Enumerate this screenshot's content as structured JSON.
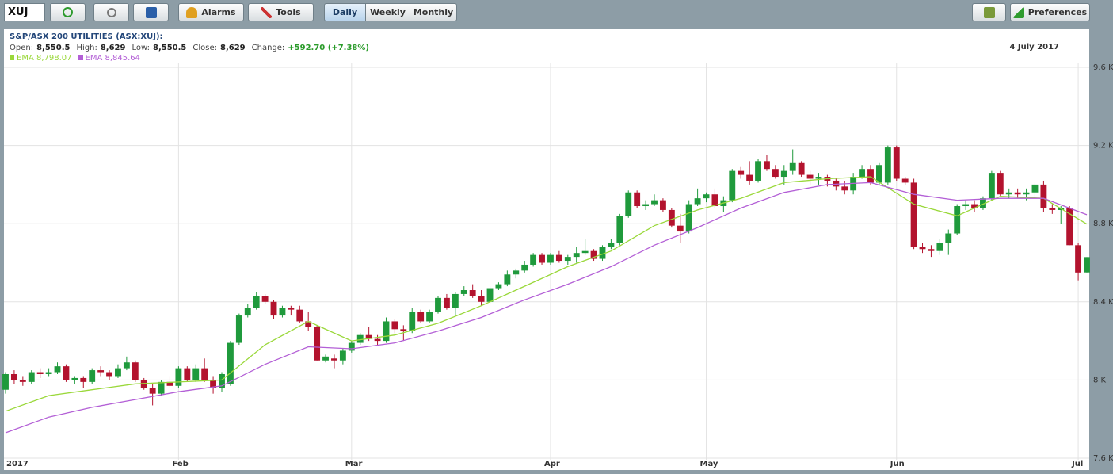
{
  "toolbar": {
    "symbol": "XUJ",
    "buttons": [
      "Alarms",
      "Tools",
      "Daily",
      "Weekly",
      "Monthly",
      "Preferences"
    ]
  },
  "chart_data": {
    "type": "candlestick",
    "title": "S&P/ASX 200 UTILITIES (ASX:XUJ):",
    "info": {
      "labels": [
        "Open:",
        "High:",
        "Low:",
        "Close:",
        "Change:"
      ],
      "values": [
        "8,550.5",
        "8,629",
        "8,550.5",
        "8,629",
        "+592.70 (+7.38%)"
      ]
    },
    "date": "4 July 2017",
    "up_color": "#1f9a3c",
    "down_color": "#b3132e",
    "ohlc": [
      [
        7950,
        8040,
        7930,
        8030
      ],
      [
        8030,
        8050,
        7980,
        8000
      ],
      [
        8000,
        8020,
        7970,
        7990
      ],
      [
        7990,
        8050,
        7980,
        8040
      ],
      [
        8040,
        8060,
        8010,
        8030
      ],
      [
        8030,
        8060,
        8020,
        8040
      ],
      [
        8040,
        8090,
        8030,
        8070
      ],
      [
        8070,
        8080,
        7990,
        8000
      ],
      [
        8000,
        8020,
        7980,
        8010
      ],
      [
        8010,
        8020,
        7960,
        7990
      ],
      [
        7990,
        8060,
        7980,
        8050
      ],
      [
        8050,
        8070,
        8020,
        8040
      ],
      [
        8040,
        8050,
        8000,
        8020
      ],
      [
        8020,
        8080,
        8010,
        8060
      ],
      [
        8060,
        8120,
        8050,
        8090
      ],
      [
        8090,
        8100,
        7990,
        8000
      ],
      [
        8000,
        8010,
        7950,
        7960
      ],
      [
        7960,
        7980,
        7870,
        7930
      ],
      [
        7930,
        8000,
        7920,
        7990
      ],
      [
        7990,
        8020,
        7960,
        7970
      ],
      [
        7970,
        8070,
        7960,
        8060
      ],
      [
        8060,
        8070,
        7990,
        8000
      ],
      [
        8000,
        8080,
        7990,
        8060
      ],
      [
        8060,
        8110,
        7990,
        8000
      ],
      [
        8000,
        8020,
        7930,
        7960
      ],
      [
        7960,
        8040,
        7940,
        8030
      ],
      [
        7980,
        8200,
        7970,
        8190
      ],
      [
        8190,
        8340,
        8180,
        8330
      ],
      [
        8330,
        8390,
        8320,
        8370
      ],
      [
        8370,
        8450,
        8360,
        8430
      ],
      [
        8430,
        8440,
        8390,
        8400
      ],
      [
        8400,
        8410,
        8310,
        8330
      ],
      [
        8330,
        8380,
        8320,
        8370
      ],
      [
        8370,
        8380,
        8330,
        8360
      ],
      [
        8360,
        8380,
        8290,
        8300
      ],
      [
        8300,
        8350,
        8250,
        8270
      ],
      [
        8270,
        8280,
        8100,
        8100
      ],
      [
        8100,
        8130,
        8090,
        8120
      ],
      [
        8110,
        8130,
        8060,
        8100
      ],
      [
        8100,
        8160,
        8080,
        8150
      ],
      [
        8150,
        8200,
        8140,
        8190
      ],
      [
        8190,
        8240,
        8180,
        8230
      ],
      [
        8230,
        8270,
        8200,
        8210
      ],
      [
        8210,
        8230,
        8180,
        8200
      ],
      [
        8200,
        8320,
        8190,
        8300
      ],
      [
        8300,
        8310,
        8240,
        8260
      ],
      [
        8260,
        8280,
        8200,
        8250
      ],
      [
        8250,
        8370,
        8240,
        8350
      ],
      [
        8350,
        8360,
        8290,
        8300
      ],
      [
        8300,
        8360,
        8290,
        8350
      ],
      [
        8350,
        8430,
        8340,
        8420
      ],
      [
        8420,
        8440,
        8360,
        8370
      ],
      [
        8370,
        8450,
        8330,
        8440
      ],
      [
        8440,
        8480,
        8430,
        8460
      ],
      [
        8460,
        8490,
        8420,
        8430
      ],
      [
        8430,
        8460,
        8380,
        8400
      ],
      [
        8400,
        8480,
        8390,
        8470
      ],
      [
        8470,
        8500,
        8460,
        8490
      ],
      [
        8490,
        8560,
        8480,
        8540
      ],
      [
        8540,
        8570,
        8520,
        8560
      ],
      [
        8560,
        8610,
        8550,
        8590
      ],
      [
        8590,
        8650,
        8580,
        8640
      ],
      [
        8640,
        8650,
        8590,
        8600
      ],
      [
        8600,
        8650,
        8590,
        8640
      ],
      [
        8640,
        8660,
        8600,
        8610
      ],
      [
        8610,
        8640,
        8590,
        8630
      ],
      [
        8630,
        8680,
        8600,
        8650
      ],
      [
        8650,
        8720,
        8640,
        8660
      ],
      [
        8660,
        8670,
        8610,
        8620
      ],
      [
        8620,
        8690,
        8610,
        8680
      ],
      [
        8680,
        8720,
        8670,
        8700
      ],
      [
        8700,
        8850,
        8690,
        8840
      ],
      [
        8840,
        8970,
        8830,
        8960
      ],
      [
        8960,
        8970,
        8880,
        8890
      ],
      [
        8890,
        8920,
        8870,
        8900
      ],
      [
        8900,
        8950,
        8890,
        8920
      ],
      [
        8920,
        8930,
        8860,
        8870
      ],
      [
        8870,
        8880,
        8780,
        8790
      ],
      [
        8790,
        8850,
        8700,
        8760
      ],
      [
        8760,
        8920,
        8750,
        8900
      ],
      [
        8900,
        8980,
        8890,
        8930
      ],
      [
        8930,
        8960,
        8910,
        8950
      ],
      [
        8950,
        8980,
        8880,
        8890
      ],
      [
        8890,
        8940,
        8860,
        8920
      ],
      [
        8920,
        9080,
        8910,
        9070
      ],
      [
        9070,
        9090,
        9030,
        9050
      ],
      [
        9050,
        9120,
        9000,
        9020
      ],
      [
        9020,
        9130,
        9010,
        9120
      ],
      [
        9120,
        9150,
        9070,
        9080
      ],
      [
        9080,
        9100,
        9030,
        9040
      ],
      [
        9040,
        9100,
        9000,
        9070
      ],
      [
        9070,
        9180,
        9050,
        9110
      ],
      [
        9110,
        9120,
        9040,
        9050
      ],
      [
        9050,
        9070,
        9000,
        9030
      ],
      [
        9030,
        9060,
        9000,
        9040
      ],
      [
        9040,
        9050,
        8990,
        9020
      ],
      [
        9020,
        9030,
        8970,
        8990
      ],
      [
        8990,
        9020,
        8950,
        8970
      ],
      [
        8970,
        9060,
        8950,
        9040
      ],
      [
        9040,
        9100,
        9030,
        9080
      ],
      [
        9080,
        9100,
        9000,
        9010
      ],
      [
        9010,
        9110,
        9000,
        9100
      ],
      [
        9010,
        9200,
        9000,
        9190
      ],
      [
        9190,
        9200,
        9020,
        9030
      ],
      [
        9030,
        9040,
        9000,
        9010
      ],
      [
        9010,
        9030,
        8670,
        8680
      ],
      [
        8680,
        8700,
        8650,
        8670
      ],
      [
        8670,
        8690,
        8630,
        8660
      ],
      [
        8660,
        8720,
        8640,
        8700
      ],
      [
        8700,
        8770,
        8640,
        8750
      ],
      [
        8750,
        8900,
        8740,
        8890
      ],
      [
        8890,
        8920,
        8870,
        8900
      ],
      [
        8900,
        8920,
        8860,
        8880
      ],
      [
        8880,
        8940,
        8870,
        8930
      ],
      [
        8930,
        9070,
        8920,
        9060
      ],
      [
        9060,
        9070,
        8940,
        8950
      ],
      [
        8950,
        8980,
        8930,
        8960
      ],
      [
        8960,
        8980,
        8930,
        8950
      ],
      [
        8950,
        8980,
        8920,
        8960
      ],
      [
        8960,
        9010,
        8940,
        9000
      ],
      [
        9000,
        9020,
        8860,
        8880
      ],
      [
        8880,
        8900,
        8850,
        8870
      ],
      [
        8870,
        8890,
        8800,
        8880
      ],
      [
        8880,
        8890,
        8690,
        8690
      ],
      [
        8690,
        8700,
        8510,
        8550
      ],
      [
        8550.5,
        8629,
        8550.5,
        8629
      ]
    ],
    "series": [
      {
        "name": "EMA 8,798.07",
        "color": "#9ad83a",
        "x": [
          0,
          5,
          10,
          15,
          20,
          25,
          30,
          35,
          40,
          45,
          50,
          55,
          60,
          65,
          70,
          75,
          80,
          85,
          90,
          95,
          100,
          105,
          110,
          115,
          120,
          125
        ],
        "values": [
          7840,
          7920,
          7950,
          7980,
          7990,
          8000,
          8180,
          8300,
          8200,
          8230,
          8290,
          8380,
          8480,
          8580,
          8660,
          8790,
          8870,
          8930,
          9010,
          9030,
          9040,
          8900,
          8840,
          8940,
          8930,
          8798.07
        ]
      },
      {
        "name": "EMA 8,845.64",
        "color": "#b35fd6",
        "x": [
          0,
          5,
          10,
          15,
          20,
          25,
          30,
          35,
          40,
          45,
          50,
          55,
          60,
          65,
          70,
          75,
          80,
          85,
          90,
          95,
          100,
          105,
          110,
          115,
          120,
          125
        ],
        "values": [
          7730,
          7810,
          7860,
          7900,
          7940,
          7970,
          8080,
          8170,
          8160,
          8190,
          8250,
          8320,
          8410,
          8490,
          8580,
          8690,
          8780,
          8880,
          8960,
          9000,
          9010,
          8950,
          8920,
          8930,
          8930,
          8845.64
        ]
      }
    ],
    "xlim": [
      0,
      125
    ],
    "xticks": [
      {
        "value": 0,
        "label": "2017"
      },
      {
        "value": 20,
        "label": "Feb"
      },
      {
        "value": 40,
        "label": "Mar"
      },
      {
        "value": 63,
        "label": "Apr"
      },
      {
        "value": 81,
        "label": "May"
      },
      {
        "value": 103,
        "label": "Jun"
      },
      {
        "value": 124,
        "label": "Jul"
      }
    ],
    "ylim": [
      7600,
      9600
    ],
    "yticks": [
      {
        "value": 7600,
        "label": "7.6 K"
      },
      {
        "value": 8000,
        "label": "8 K"
      },
      {
        "value": 8400,
        "label": "8.4 K"
      },
      {
        "value": 8800,
        "label": "8.8 K"
      },
      {
        "value": 9200,
        "label": "9.2 K"
      },
      {
        "value": 9600,
        "label": "9.6 K"
      }
    ],
    "grid": true
  }
}
